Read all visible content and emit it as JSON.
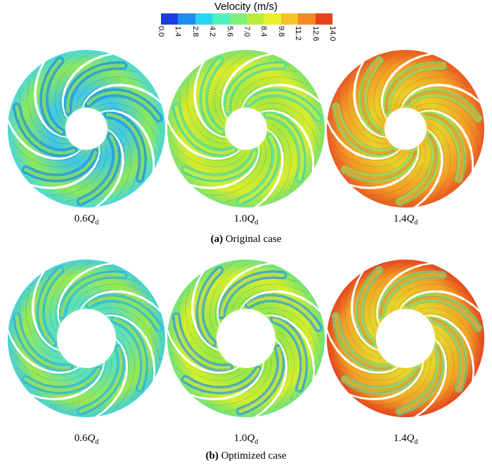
{
  "legend": {
    "title": "Velocity (m/s)",
    "ticks": [
      "0.0",
      "1.4",
      "2.8",
      "4.2",
      "5.6",
      "7.0",
      "8.4",
      "9.8",
      "11.2",
      "12.6",
      "14.0"
    ],
    "colors": [
      "#1a3fe0",
      "#1f8ef0",
      "#27d4f2",
      "#4ef0c0",
      "#7ef07a",
      "#b8ee3c",
      "#eaf02a",
      "#f5c22a",
      "#f08a22",
      "#e8421c"
    ]
  },
  "rows": [
    {
      "panel_letter": "(a)",
      "panel_title": "Original case",
      "impellers": [
        {
          "flow_coef": "0.6",
          "flow_symbol": "Q",
          "flow_sub": "d",
          "base": "#3ec8e8",
          "mid": "#8ce85a",
          "hi": "#1e90f0",
          "rim": "#4ad8d8"
        },
        {
          "flow_coef": "1.0",
          "flow_symbol": "Q",
          "flow_sub": "d",
          "base": "#a6e842",
          "mid": "#d8ec2c",
          "hi": "#3ee0b8",
          "rim": "#7ee26a"
        },
        {
          "flow_coef": "1.4",
          "flow_symbol": "Q",
          "flow_sub": "d",
          "base": "#e8d02a",
          "mid": "#f39a24",
          "hi": "#7ae872",
          "rim": "#e85a22"
        }
      ]
    },
    {
      "panel_letter": "(b)",
      "panel_title": "Optimized case",
      "impellers": [
        {
          "flow_coef": "0.6",
          "flow_symbol": "Q",
          "flow_sub": "d",
          "base": "#58e0c0",
          "mid": "#9ce84e",
          "hi": "#2ab8ec",
          "rim": "#44d0d8"
        },
        {
          "flow_coef": "1.0",
          "flow_symbol": "Q",
          "flow_sub": "d",
          "base": "#96e84c",
          "mid": "#d4ee2c",
          "hi": "#2a9cf0",
          "rim": "#6ee27a"
        },
        {
          "flow_coef": "1.4",
          "flow_symbol": "Q",
          "flow_sub": "d",
          "base": "#e6d62c",
          "mid": "#f2a024",
          "hi": "#6ae08a",
          "rim": "#e6461e"
        }
      ]
    }
  ]
}
